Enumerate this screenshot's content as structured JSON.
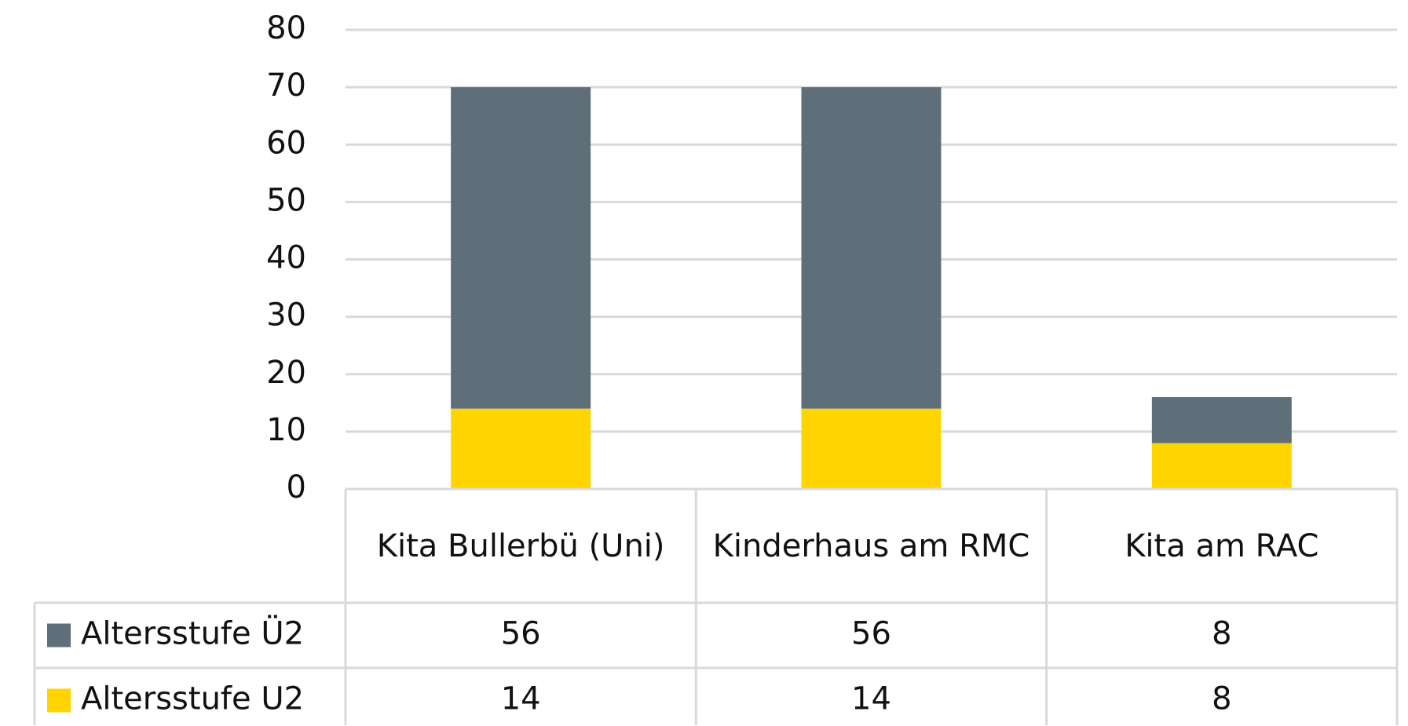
{
  "chart_data": {
    "type": "stacked_bar",
    "categories": [
      "Kita Bullerbü (Uni)",
      "Kinderhaus am RMC",
      "Kita am RAC"
    ],
    "series": [
      {
        "name": "Altersstufe Ü2",
        "color": "#5f6f79",
        "values": [
          56,
          56,
          8
        ]
      },
      {
        "name": "Altersstufe U2",
        "color": "#ffd400",
        "values": [
          14,
          14,
          8
        ]
      }
    ],
    "ylim": [
      0,
      80
    ],
    "yticks": [
      0,
      10,
      20,
      30,
      40,
      50,
      60,
      70,
      80
    ],
    "grid": true,
    "data_table": true
  }
}
